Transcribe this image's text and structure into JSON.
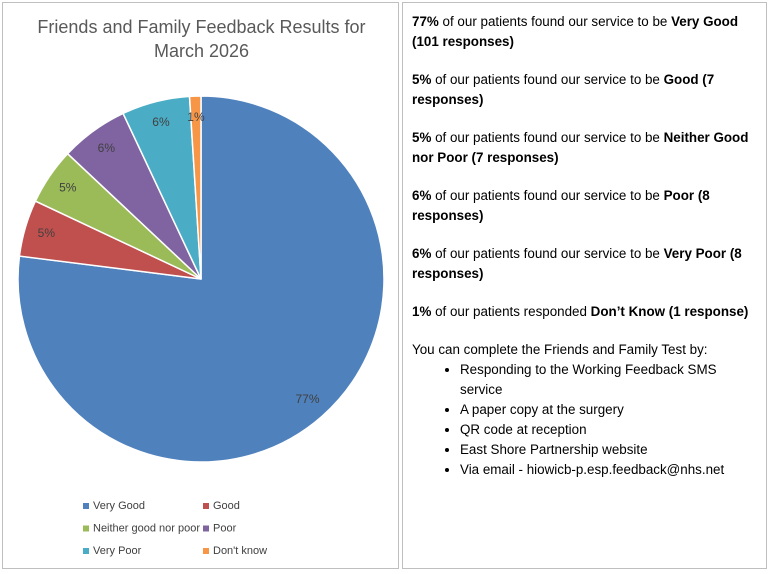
{
  "chart_data": {
    "type": "pie",
    "title": "Friends and Family Feedback Results for March 2026",
    "categories": [
      "Very Good",
      "Good",
      "Neither good nor poor",
      "Poor",
      "Very Poor",
      "Don't know"
    ],
    "values": [
      77,
      5,
      5,
      6,
      6,
      1
    ],
    "value_labels": [
      "77%",
      "5%",
      "5%",
      "6%",
      "6%",
      "1%"
    ],
    "colors": [
      "#4f81bd",
      "#c0504d",
      "#9bbb59",
      "#8064a2",
      "#4bacc6",
      "#f79646"
    ],
    "legend": "bottom"
  },
  "text_panel": {
    "paragraphs": [
      {
        "parts": [
          {
            "text": "77%",
            "bold": true
          },
          {
            "text": " of our patients found our service to be "
          },
          {
            "text": "Very Good (101 responses)",
            "bold": true
          }
        ]
      },
      {
        "parts": [
          {
            "text": "5%",
            "bold": true
          },
          {
            "text": " of our patients found our service to be "
          },
          {
            "text": "Good (7 responses)",
            "bold": true
          }
        ]
      },
      {
        "parts": [
          {
            "text": "5%",
            "bold": true
          },
          {
            "text": " of our patients found our service to be "
          },
          {
            "text": "Neither Good nor Poor (7 responses)",
            "bold": true
          }
        ]
      },
      {
        "parts": [
          {
            "text": "6%",
            "bold": true
          },
          {
            "text": " of our patients found our service to be "
          },
          {
            "text": "Poor (8 responses)",
            "bold": true
          }
        ]
      },
      {
        "parts": [
          {
            "text": "6%",
            "bold": true
          },
          {
            "text": " of our patients found our service to be "
          },
          {
            "text": "Very Poor (8 responses)",
            "bold": true
          }
        ]
      },
      {
        "parts": [
          {
            "text": "1%",
            "bold": true
          },
          {
            "text": " of our patients responded "
          },
          {
            "text": "Don’t Know (1 response)",
            "bold": true
          }
        ]
      }
    ],
    "intro": "You can complete the Friends and Family Test by:",
    "bullets": [
      "Responding to the Working Feedback SMS service",
      "A paper copy at the surgery",
      "QR code at reception",
      "East Shore Partnership website",
      "Via email - hiowicb-p.esp.feedback@nhs.net"
    ]
  }
}
